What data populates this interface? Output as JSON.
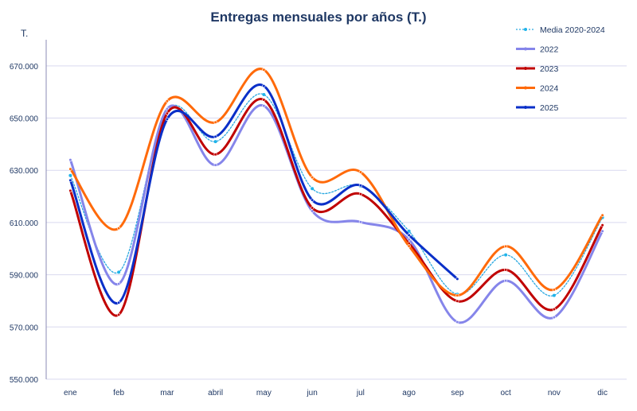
{
  "chart_data": {
    "type": "line",
    "title": "Entregas mensuales por años (T.)",
    "ylabel": "T.",
    "xlabel": "",
    "categories": [
      "ene",
      "feb",
      "mar",
      "abril",
      "may",
      "jun",
      "jul",
      "ago",
      "sep",
      "oct",
      "nov",
      "dic"
    ],
    "ylim": [
      550000,
      680000
    ],
    "yticks": [
      550000,
      570000,
      590000,
      610000,
      630000,
      650000,
      670000
    ],
    "ytick_labels": [
      "550.000",
      "570.000",
      "590.000",
      "610.000",
      "630.000",
      "650.000",
      "670.000"
    ],
    "grid": true,
    "legend_position": "top-right",
    "smooth": true,
    "series": [
      {
        "name": "Media 2020-2024",
        "color": "#29a8e0",
        "style": "dotted",
        "values": [
          628000,
          591000,
          653000,
          641000,
          659000,
          623000,
          624000,
          606700,
          582500,
          597600,
          582100,
          611900
        ]
      },
      {
        "name": "2022",
        "color": "#8585ea",
        "style": "solid",
        "values": [
          634000,
          586500,
          653500,
          632000,
          654700,
          614400,
          610200,
          603500,
          571900,
          587700,
          573700,
          606700
        ]
      },
      {
        "name": "2023",
        "color": "#c00000",
        "style": "solid",
        "values": [
          622200,
          574700,
          651800,
          636100,
          657000,
          615600,
          620900,
          602000,
          579900,
          591900,
          576800,
          609000
        ]
      },
      {
        "name": "2024",
        "color": "#ff6a0a",
        "style": "solid",
        "values": [
          630500,
          607800,
          656500,
          648400,
          668500,
          627300,
          629300,
          601000,
          582100,
          600900,
          584300,
          612800
        ]
      },
      {
        "name": "2025",
        "color": "#0a2fc8",
        "style": "solid",
        "values": [
          626200,
          579300,
          649600,
          642900,
          662300,
          618600,
          624200,
          605200,
          588400,
          null,
          null,
          null
        ]
      }
    ]
  },
  "colors": {
    "title": "#1f3864",
    "axis_text": "#1f3864",
    "grid": "#d9d9ef"
  }
}
